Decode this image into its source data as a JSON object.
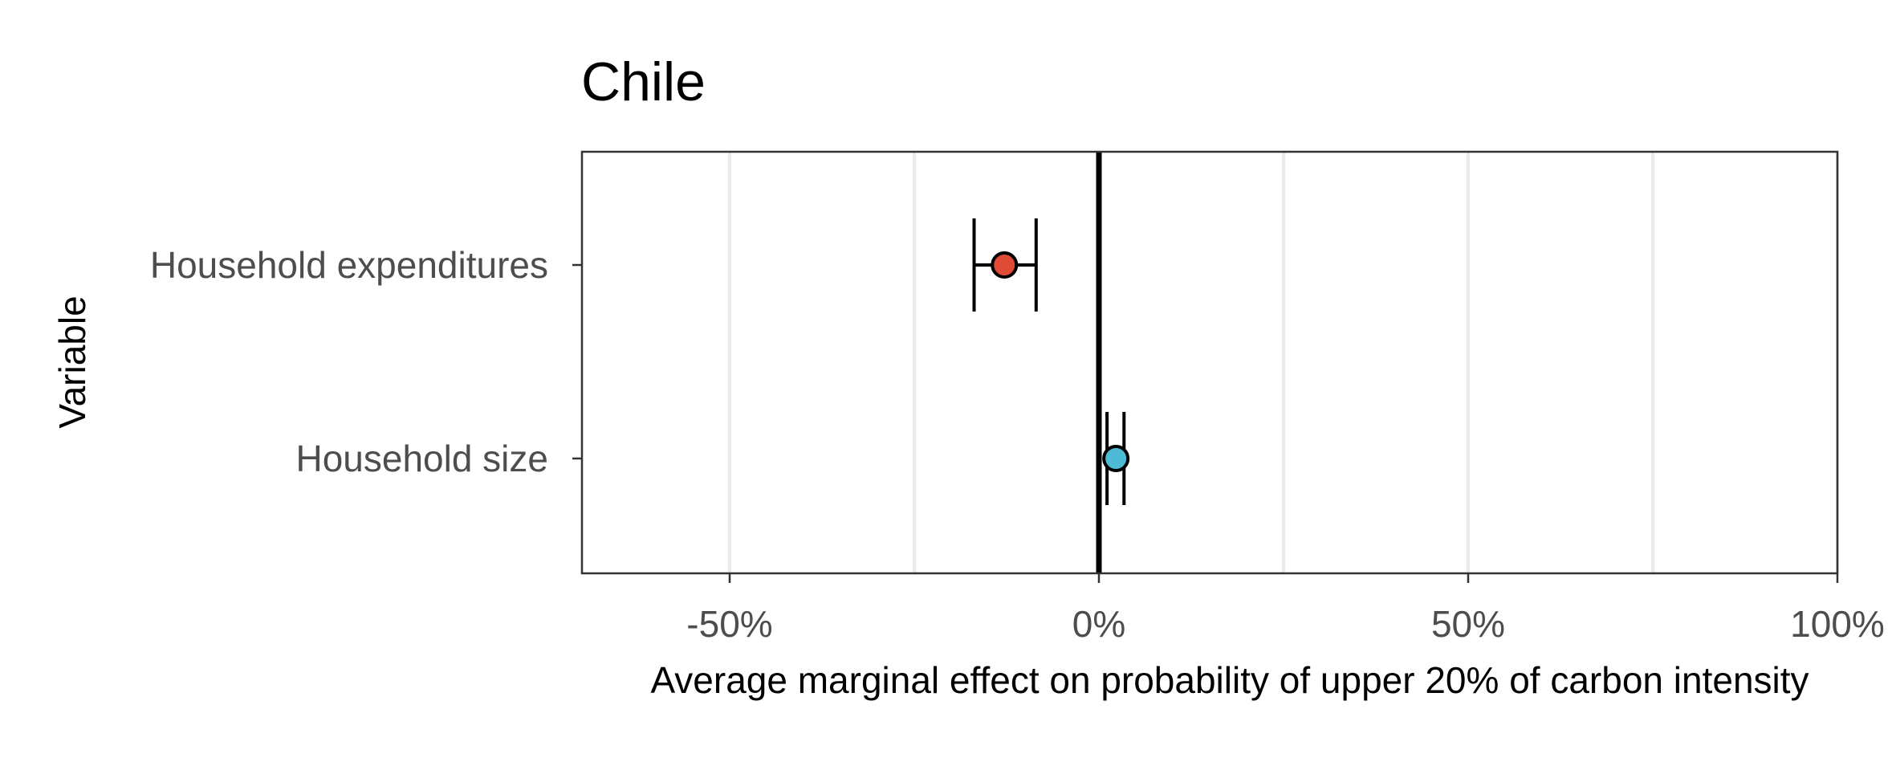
{
  "chart_data": {
    "type": "scatter",
    "title": "Chile",
    "xlabel": "Average marginal effect on probability of upper 20% of carbon intensity",
    "ylabel": "Variable",
    "xlim": [
      -0.7,
      1.0
    ],
    "x_ticks": [
      -0.5,
      0.0,
      0.5,
      1.0
    ],
    "x_tick_labels": [
      "-50%",
      "0%",
      "50%",
      "100%"
    ],
    "x_minor_gridlines": [
      -0.25,
      0.25,
      0.75
    ],
    "reference_line_x": 0,
    "grid": true,
    "categories": [
      "Household expenditures",
      "Household size"
    ],
    "points": [
      {
        "category": "Household expenditures",
        "estimate": -0.128,
        "ci_low": -0.169,
        "ci_high": -0.085,
        "color": "#e04b35"
      },
      {
        "category": "Household size",
        "estimate": 0.023,
        "ci_low": 0.011,
        "ci_high": 0.034,
        "color": "#4dbbd5"
      }
    ]
  }
}
